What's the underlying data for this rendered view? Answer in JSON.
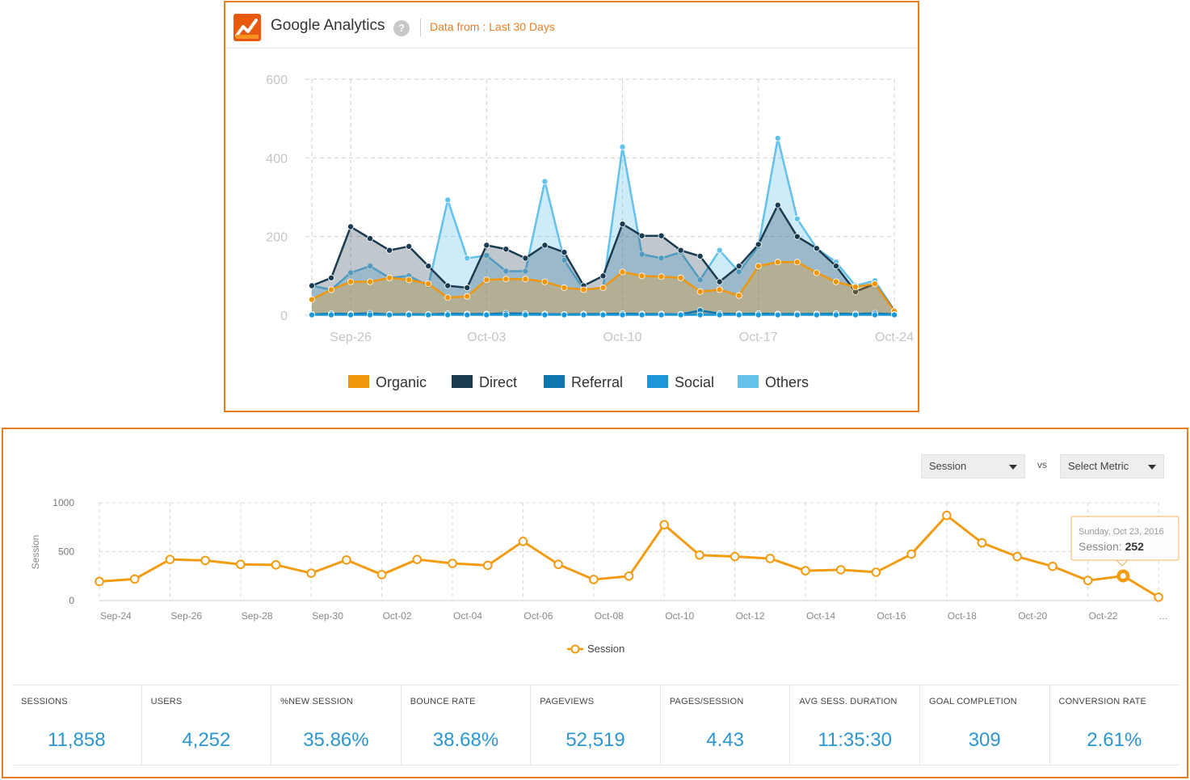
{
  "ga_panel": {
    "title": "Google Analytics",
    "help": "?",
    "date_range": "Data from : Last 30 Days"
  },
  "chart_data": [
    {
      "type": "area",
      "x": [
        "Sep-24",
        "Sep-25",
        "Sep-26",
        "Sep-27",
        "Sep-28",
        "Sep-29",
        "Sep-30",
        "Oct-01",
        "Oct-02",
        "Oct-03",
        "Oct-04",
        "Oct-05",
        "Oct-06",
        "Oct-07",
        "Oct-08",
        "Oct-09",
        "Oct-10",
        "Oct-11",
        "Oct-12",
        "Oct-13",
        "Oct-14",
        "Oct-15",
        "Oct-16",
        "Oct-17",
        "Oct-18",
        "Oct-19",
        "Oct-20",
        "Oct-21",
        "Oct-22",
        "Oct-23",
        "Oct-24"
      ],
      "xticks": [
        "Sep-26",
        "Oct-03",
        "Oct-10",
        "Oct-17",
        "Oct-24"
      ],
      "yticks": [
        0,
        200,
        400,
        600
      ],
      "ylim": [
        0,
        600
      ],
      "grid": true,
      "legend_position": "bottom",
      "series": [
        {
          "name": "Organic",
          "color": "#f0960a",
          "values": [
            40,
            65,
            85,
            85,
            95,
            90,
            80,
            45,
            48,
            90,
            92,
            92,
            85,
            70,
            65,
            70,
            110,
            100,
            98,
            95,
            60,
            65,
            50,
            125,
            135,
            135,
            108,
            85,
            72,
            80,
            10
          ]
        },
        {
          "name": "Direct",
          "color": "#1b3b50",
          "values": [
            75,
            95,
            225,
            195,
            165,
            175,
            125,
            75,
            70,
            178,
            168,
            145,
            178,
            160,
            75,
            100,
            232,
            202,
            202,
            165,
            150,
            85,
            125,
            180,
            280,
            200,
            170,
            125,
            60,
            80,
            12
          ]
        },
        {
          "name": "Referral",
          "color": "#0f77b0",
          "values": [
            2,
            4,
            3,
            5,
            2,
            3,
            2,
            4,
            3,
            3,
            5,
            4,
            3,
            2,
            3,
            3,
            4,
            3,
            3,
            2,
            12,
            4,
            3,
            4,
            3,
            3,
            3,
            4,
            3,
            5,
            2
          ]
        },
        {
          "name": "Social",
          "color": "#1a97d6",
          "values": [
            1,
            1,
            1,
            1,
            1,
            1,
            1,
            1,
            1,
            1,
            1,
            1,
            1,
            1,
            1,
            1,
            1,
            1,
            1,
            1,
            1,
            1,
            1,
            1,
            1,
            1,
            1,
            1,
            1,
            1,
            1
          ]
        },
        {
          "name": "Others",
          "color": "#64c1ea",
          "values": [
            75,
            65,
            108,
            125,
            95,
            100,
            75,
            293,
            145,
            152,
            112,
            112,
            340,
            140,
            65,
            70,
            428,
            155,
            145,
            160,
            90,
            165,
            110,
            175,
            450,
            245,
            170,
            135,
            75,
            88,
            12
          ]
        }
      ]
    },
    {
      "type": "line",
      "x": [
        "Sep-24",
        "Sep-25",
        "Sep-26",
        "Sep-27",
        "Sep-28",
        "Sep-29",
        "Sep-30",
        "Oct-01",
        "Oct-02",
        "Oct-03",
        "Oct-04",
        "Oct-05",
        "Oct-06",
        "Oct-07",
        "Oct-08",
        "Oct-09",
        "Oct-10",
        "Oct-11",
        "Oct-12",
        "Oct-13",
        "Oct-14",
        "Oct-15",
        "Oct-16",
        "Oct-17",
        "Oct-18",
        "Oct-19",
        "Oct-20",
        "Oct-21",
        "Oct-22",
        "Oct-23",
        "Oct-24"
      ],
      "xticks": [
        "Sep-24",
        "Sep-26",
        "Sep-28",
        "Sep-30",
        "Oct-02",
        "Oct-04",
        "Oct-06",
        "Oct-08",
        "Oct-10",
        "Oct-12",
        "Oct-14",
        "Oct-16",
        "Oct-18",
        "Oct-20",
        "Oct-22",
        "..."
      ],
      "yticks": [
        0,
        500,
        1000
      ],
      "ylim": [
        0,
        1000
      ],
      "ylabel": "Session",
      "grid": true,
      "legend_position": "bottom",
      "series": [
        {
          "name": "Session",
          "color": "#f39c12",
          "values": [
            195,
            220,
            420,
            410,
            370,
            365,
            280,
            415,
            265,
            420,
            380,
            360,
            605,
            370,
            215,
            250,
            775,
            465,
            450,
            430,
            305,
            315,
            290,
            475,
            870,
            590,
            450,
            350,
            205,
            252,
            35
          ]
        }
      ],
      "tooltip": {
        "date": "Sunday, Oct 23, 2016",
        "label": "Session:",
        "value": "252",
        "index": 29
      }
    }
  ],
  "controls": {
    "metric_select": "Session",
    "vs": "vs",
    "compare_select": "Select Metric"
  },
  "stats": [
    {
      "label": "SESSIONS",
      "value": "11,858"
    },
    {
      "label": "USERS",
      "value": "4,252"
    },
    {
      "label": "%NEW SESSION",
      "value": "35.86%"
    },
    {
      "label": "BOUNCE RATE",
      "value": "38.68%"
    },
    {
      "label": "PAGEVIEWS",
      "value": "52,519"
    },
    {
      "label": "PAGES/SESSION",
      "value": "4.43"
    },
    {
      "label": "AVG SESS. DURATION",
      "value": "11:35:30"
    },
    {
      "label": "GOAL COMPLETION",
      "value": "309"
    },
    {
      "label": "CONVERSION RATE",
      "value": "2.61%"
    }
  ]
}
